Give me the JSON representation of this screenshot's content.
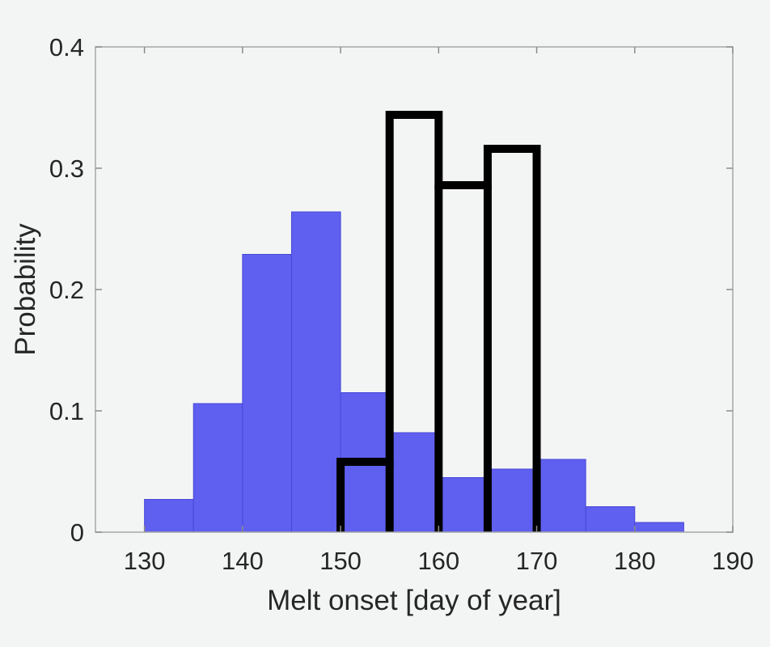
{
  "chart_data": {
    "type": "bar",
    "xlabel": "Melt onset [day of year]",
    "ylabel": "Probability",
    "xlim": [
      125,
      190
    ],
    "ylim": [
      0,
      0.4
    ],
    "xticks": [
      130,
      140,
      150,
      160,
      170,
      180,
      190
    ],
    "yticks": [
      0,
      0.1,
      0.2,
      0.3,
      0.4
    ],
    "xtick_labels": [
      "130",
      "140",
      "150",
      "160",
      "170",
      "180",
      "190"
    ],
    "ytick_labels": [
      "0",
      "0.1",
      "0.2",
      "0.3",
      "0.4"
    ],
    "bin_width": 5,
    "grid": false,
    "series": [
      {
        "style": "filled",
        "color": "#5f5ff0",
        "bin_starts": [
          130,
          135,
          140,
          145,
          150,
          155,
          160,
          165,
          170,
          175,
          180
        ],
        "values": [
          0.027,
          0.106,
          0.229,
          0.264,
          0.115,
          0.082,
          0.045,
          0.052,
          0.06,
          0.021,
          0.008
        ]
      },
      {
        "style": "outline",
        "color": "#000000",
        "bin_starts": [
          150,
          155,
          160,
          165
        ],
        "values": [
          0.058,
          0.344,
          0.286,
          0.316
        ]
      }
    ]
  }
}
